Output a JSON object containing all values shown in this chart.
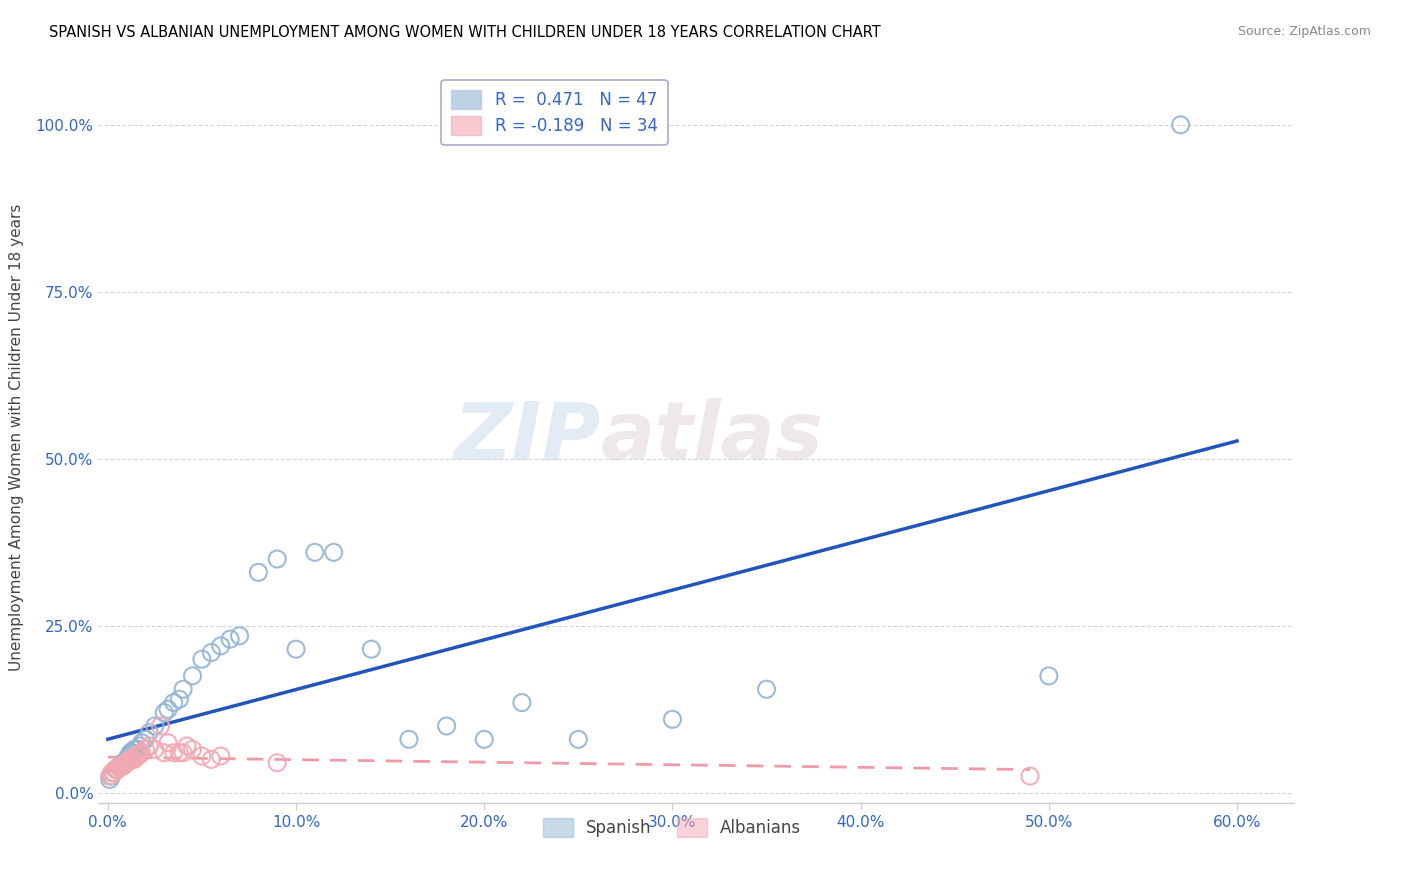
{
  "title": "SPANISH VS ALBANIAN UNEMPLOYMENT AMONG WOMEN WITH CHILDREN UNDER 18 YEARS CORRELATION CHART",
  "source": "Source: ZipAtlas.com",
  "ylabel": "Unemployment Among Women with Children Under 18 years",
  "xlabel_ticks": [
    "0.0%",
    "10.0%",
    "20.0%",
    "30.0%",
    "40.0%",
    "50.0%",
    "60.0%"
  ],
  "xlabel_vals": [
    0.0,
    0.1,
    0.2,
    0.3,
    0.4,
    0.5,
    0.6
  ],
  "ylabel_ticks": [
    "0.0%",
    "25.0%",
    "50.0%",
    "75.0%",
    "100.0%"
  ],
  "ylabel_vals": [
    0.0,
    0.25,
    0.5,
    0.75,
    1.0
  ],
  "xlim": [
    -0.005,
    0.63
  ],
  "ylim": [
    -0.015,
    1.08
  ],
  "spanish_R": 0.471,
  "spanish_N": 47,
  "albanian_R": -0.189,
  "albanian_N": 34,
  "spanish_color": "#92B4D4",
  "albanian_color": "#F4A8B0",
  "trendline_spanish_color": "#2255BB",
  "trendline_albanian_color": "#EE8899",
  "watermark_zip": "ZIP",
  "watermark_atlas": "atlas",
  "spanish_x": [
    0.001,
    0.002,
    0.003,
    0.004,
    0.005,
    0.006,
    0.007,
    0.008,
    0.009,
    0.01,
    0.011,
    0.012,
    0.013,
    0.014,
    0.015,
    0.016,
    0.017,
    0.018,
    0.02,
    0.022,
    0.025,
    0.03,
    0.032,
    0.035,
    0.038,
    0.04,
    0.045,
    0.05,
    0.055,
    0.06,
    0.065,
    0.07,
    0.08,
    0.09,
    0.1,
    0.11,
    0.12,
    0.14,
    0.16,
    0.18,
    0.2,
    0.22,
    0.25,
    0.3,
    0.35,
    0.5,
    0.57
  ],
  "spanish_y": [
    0.02,
    0.025,
    0.03,
    0.035,
    0.035,
    0.04,
    0.04,
    0.045,
    0.045,
    0.05,
    0.055,
    0.06,
    0.06,
    0.065,
    0.065,
    0.065,
    0.07,
    0.075,
    0.08,
    0.09,
    0.1,
    0.12,
    0.125,
    0.135,
    0.14,
    0.155,
    0.175,
    0.2,
    0.21,
    0.22,
    0.23,
    0.235,
    0.33,
    0.35,
    0.215,
    0.36,
    0.36,
    0.215,
    0.08,
    0.1,
    0.08,
    0.135,
    0.08,
    0.11,
    0.155,
    0.175,
    1.0
  ],
  "albanian_x": [
    0.001,
    0.002,
    0.003,
    0.004,
    0.005,
    0.006,
    0.007,
    0.008,
    0.009,
    0.01,
    0.011,
    0.012,
    0.013,
    0.014,
    0.015,
    0.016,
    0.017,
    0.018,
    0.02,
    0.022,
    0.025,
    0.028,
    0.03,
    0.032,
    0.035,
    0.038,
    0.04,
    0.042,
    0.045,
    0.05,
    0.055,
    0.06,
    0.09,
    0.49
  ],
  "albanian_y": [
    0.025,
    0.03,
    0.03,
    0.035,
    0.035,
    0.038,
    0.04,
    0.04,
    0.042,
    0.045,
    0.048,
    0.05,
    0.05,
    0.05,
    0.055,
    0.055,
    0.058,
    0.06,
    0.065,
    0.07,
    0.065,
    0.1,
    0.06,
    0.075,
    0.06,
    0.06,
    0.06,
    0.07,
    0.065,
    0.055,
    0.05,
    0.055,
    0.045,
    0.025
  ]
}
